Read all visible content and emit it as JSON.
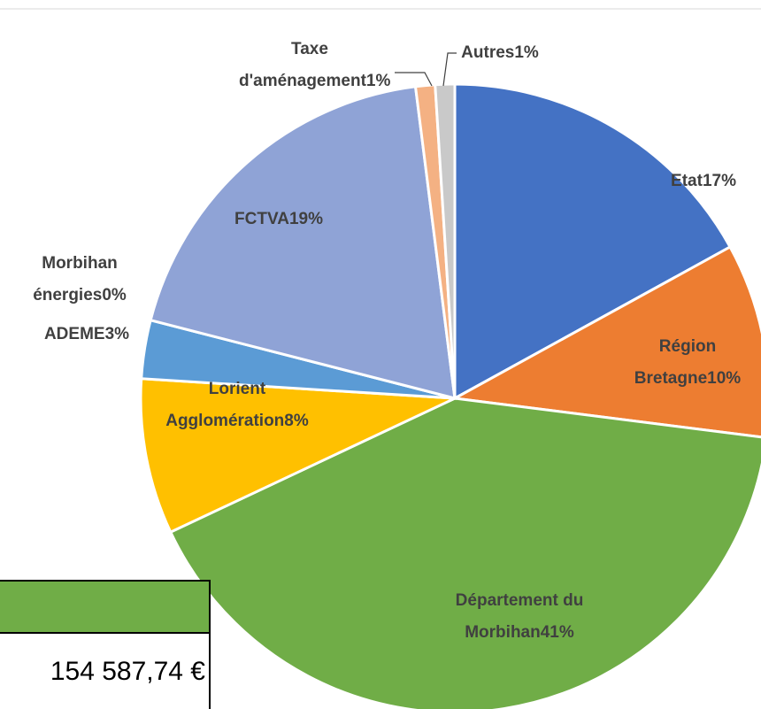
{
  "chart_data": {
    "type": "pie",
    "categories": [
      "Etat",
      "Région Bretagne",
      "Département du Morbihan",
      "Lorient Agglomération",
      "ADEME",
      "Morbihan énergies",
      "FCTVA",
      "Taxe d'aménagement",
      "Autres"
    ],
    "values": [
      17,
      10,
      41,
      8,
      3,
      0,
      19,
      1,
      1
    ],
    "value_labels": [
      "17%",
      "10%",
      "41%",
      "8%",
      "3%",
      "0%",
      "19%",
      "1%",
      "1%"
    ],
    "colors": [
      "#4472c4",
      "#ed7d31",
      "#70ad47",
      "#ffc000",
      "#5b9bd5",
      "#264478",
      "#8fa3d6",
      "#f4b183",
      "#c9c9c9"
    ]
  },
  "table": {
    "amount": "154 587,74 €"
  }
}
